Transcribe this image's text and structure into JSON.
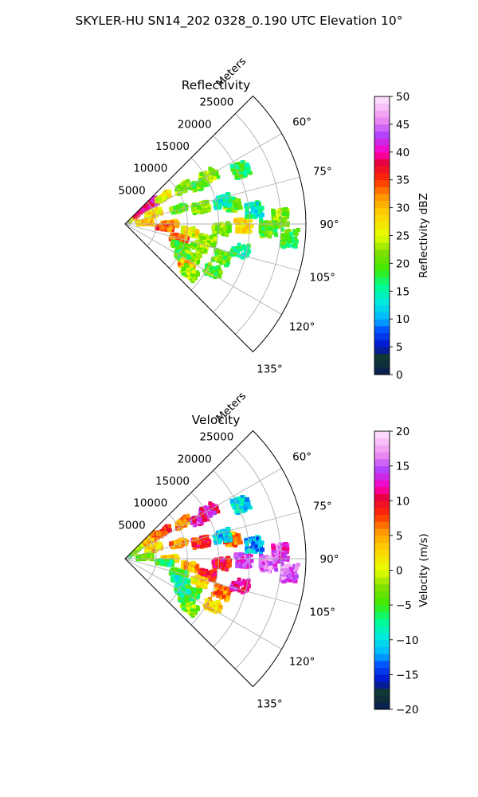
{
  "figure": {
    "suptitle": "SKYLER-HU  SN14_202  0328_0.190 UTC Elevation 10°"
  },
  "chart_data": [
    {
      "type": "polar-sector",
      "title": "Reflectivity",
      "theta_direction": "clockwise-from-north",
      "theta_range_deg": [
        45,
        135
      ],
      "theta_ticks": [
        60,
        75,
        90,
        105,
        120,
        135
      ],
      "theta_tick_labels": [
        "60°",
        "75°",
        "90°",
        "105°",
        "120°",
        "135°"
      ],
      "r_max": 29000,
      "r_ticks": [
        5000,
        10000,
        15000,
        20000,
        25000
      ],
      "r_tick_labels": [
        "5000",
        "10000",
        "15000",
        "20000",
        "25000"
      ],
      "r_label": "Meters",
      "grid": true,
      "colorbar": {
        "label": "Reflectivity dBZ",
        "range": [
          0,
          50
        ],
        "ticks": [
          0,
          5,
          10,
          15,
          20,
          25,
          30,
          35,
          40,
          45,
          50
        ],
        "tick_labels": [
          "0",
          "5",
          "10",
          "15",
          "20",
          "25",
          "30",
          "35",
          "40",
          "45",
          "50"
        ],
        "stops": [
          [
            0,
            "#0a1a5a"
          ],
          [
            0.06,
            "#103a2a"
          ],
          [
            0.1,
            "#0010c8"
          ],
          [
            0.16,
            "#0050ff"
          ],
          [
            0.2,
            "#00b4ff"
          ],
          [
            0.26,
            "#00e8e0"
          ],
          [
            0.32,
            "#00ff90"
          ],
          [
            0.38,
            "#40e800"
          ],
          [
            0.44,
            "#80e000"
          ],
          [
            0.5,
            "#e8ff00"
          ],
          [
            0.58,
            "#ffd000"
          ],
          [
            0.64,
            "#ff9600"
          ],
          [
            0.7,
            "#ff3000"
          ],
          [
            0.76,
            "#e8003a"
          ],
          [
            0.8,
            "#ff00c0"
          ],
          [
            0.86,
            "#b040ff"
          ],
          [
            0.92,
            "#f090f0"
          ],
          [
            1,
            "#ffe8ff"
          ]
        ]
      },
      "field": [
        [
          52,
          1800,
          26
        ],
        [
          50,
          3200,
          38
        ],
        [
          52,
          5200,
          40
        ],
        [
          55,
          7500,
          26
        ],
        [
          58,
          11000,
          22
        ],
        [
          62,
          13500,
          20
        ],
        [
          60,
          15500,
          22
        ],
        [
          70,
          4800,
          28
        ],
        [
          74,
          9000,
          20
        ],
        [
          78,
          12500,
          22
        ],
        [
          80,
          17500,
          20
        ],
        [
          86,
          3200,
          30
        ],
        [
          90,
          7200,
          30
        ],
        [
          95,
          6400,
          34
        ],
        [
          97,
          10500,
          26
        ],
        [
          93,
          15500,
          22
        ],
        [
          91,
          19000,
          28
        ],
        [
          88,
          25000,
          22
        ],
        [
          92,
          23000,
          20
        ],
        [
          101,
          13500,
          22
        ],
        [
          105,
          9000,
          34
        ],
        [
          107,
          12500,
          22
        ],
        [
          112,
          9500,
          20
        ],
        [
          116,
          12000,
          22
        ],
        [
          120,
          10500,
          20
        ],
        [
          124,
          12000,
          30
        ],
        [
          127,
          13000,
          22
        ],
        [
          118,
          16000,
          20
        ],
        [
          109,
          16500,
          20
        ],
        [
          65,
          20500,
          18
        ],
        [
          84,
          20800,
          14
        ],
        [
          77,
          16000,
          14
        ],
        [
          95,
          26500,
          18
        ],
        [
          103,
          19000,
          16
        ]
      ]
    },
    {
      "type": "polar-sector",
      "title": "Velocity",
      "theta_direction": "clockwise-from-north",
      "theta_range_deg": [
        45,
        135
      ],
      "theta_ticks": [
        60,
        75,
        90,
        105,
        120,
        135
      ],
      "theta_tick_labels": [
        "60°",
        "75°",
        "90°",
        "105°",
        "120°",
        "135°"
      ],
      "r_max": 29000,
      "r_ticks": [
        5000,
        10000,
        15000,
        20000,
        25000
      ],
      "r_tick_labels": [
        "5000",
        "10000",
        "15000",
        "20000",
        "25000"
      ],
      "r_label": "Meters",
      "grid": true,
      "colorbar": {
        "label": "Velocity (m/s)",
        "range": [
          -20,
          20
        ],
        "ticks": [
          -20,
          -15,
          -10,
          -5,
          0,
          5,
          10,
          15,
          20
        ],
        "tick_labels": [
          "−20",
          "−15",
          "−10",
          "−5",
          "0",
          "5",
          "10",
          "15",
          "20"
        ],
        "stops": [
          [
            0,
            "#0a1a5a"
          ],
          [
            0.06,
            "#103a2a"
          ],
          [
            0.1,
            "#0010c8"
          ],
          [
            0.16,
            "#0050ff"
          ],
          [
            0.2,
            "#00b4ff"
          ],
          [
            0.26,
            "#00e8e0"
          ],
          [
            0.32,
            "#00ff90"
          ],
          [
            0.38,
            "#40e800"
          ],
          [
            0.44,
            "#80e000"
          ],
          [
            0.5,
            "#e8ff00"
          ],
          [
            0.58,
            "#ffd000"
          ],
          [
            0.64,
            "#ff9600"
          ],
          [
            0.7,
            "#ff3000"
          ],
          [
            0.76,
            "#e8003a"
          ],
          [
            0.8,
            "#ff00c0"
          ],
          [
            0.86,
            "#b040ff"
          ],
          [
            0.92,
            "#f090f0"
          ],
          [
            1,
            "#ffe8ff"
          ]
        ]
      },
      "field": [
        [
          52,
          1800,
          -4
        ],
        [
          50,
          3200,
          -2
        ],
        [
          52,
          5200,
          5
        ],
        [
          55,
          7500,
          8
        ],
        [
          58,
          11000,
          6
        ],
        [
          62,
          13500,
          13
        ],
        [
          60,
          15500,
          12
        ],
        [
          70,
          4800,
          3
        ],
        [
          74,
          9000,
          5
        ],
        [
          78,
          12500,
          9
        ],
        [
          80,
          17500,
          6
        ],
        [
          86,
          3200,
          -3
        ],
        [
          90,
          7200,
          2
        ],
        [
          95,
          6400,
          -6
        ],
        [
          97,
          10500,
          4
        ],
        [
          93,
          15500,
          10
        ],
        [
          91,
          19000,
          14
        ],
        [
          88,
          25000,
          14
        ],
        [
          92,
          23000,
          16
        ],
        [
          101,
          13500,
          9
        ],
        [
          105,
          9000,
          -4
        ],
        [
          107,
          12500,
          2
        ],
        [
          112,
          9500,
          -8
        ],
        [
          116,
          12000,
          -5
        ],
        [
          120,
          10500,
          -7
        ],
        [
          124,
          12000,
          -6
        ],
        [
          127,
          13000,
          -3
        ],
        [
          118,
          16000,
          3
        ],
        [
          109,
          16500,
          6
        ],
        [
          65,
          20500,
          -10
        ],
        [
          84,
          20800,
          -12
        ],
        [
          77,
          16000,
          -11
        ],
        [
          95,
          26500,
          15
        ],
        [
          103,
          19000,
          12
        ]
      ]
    }
  ]
}
